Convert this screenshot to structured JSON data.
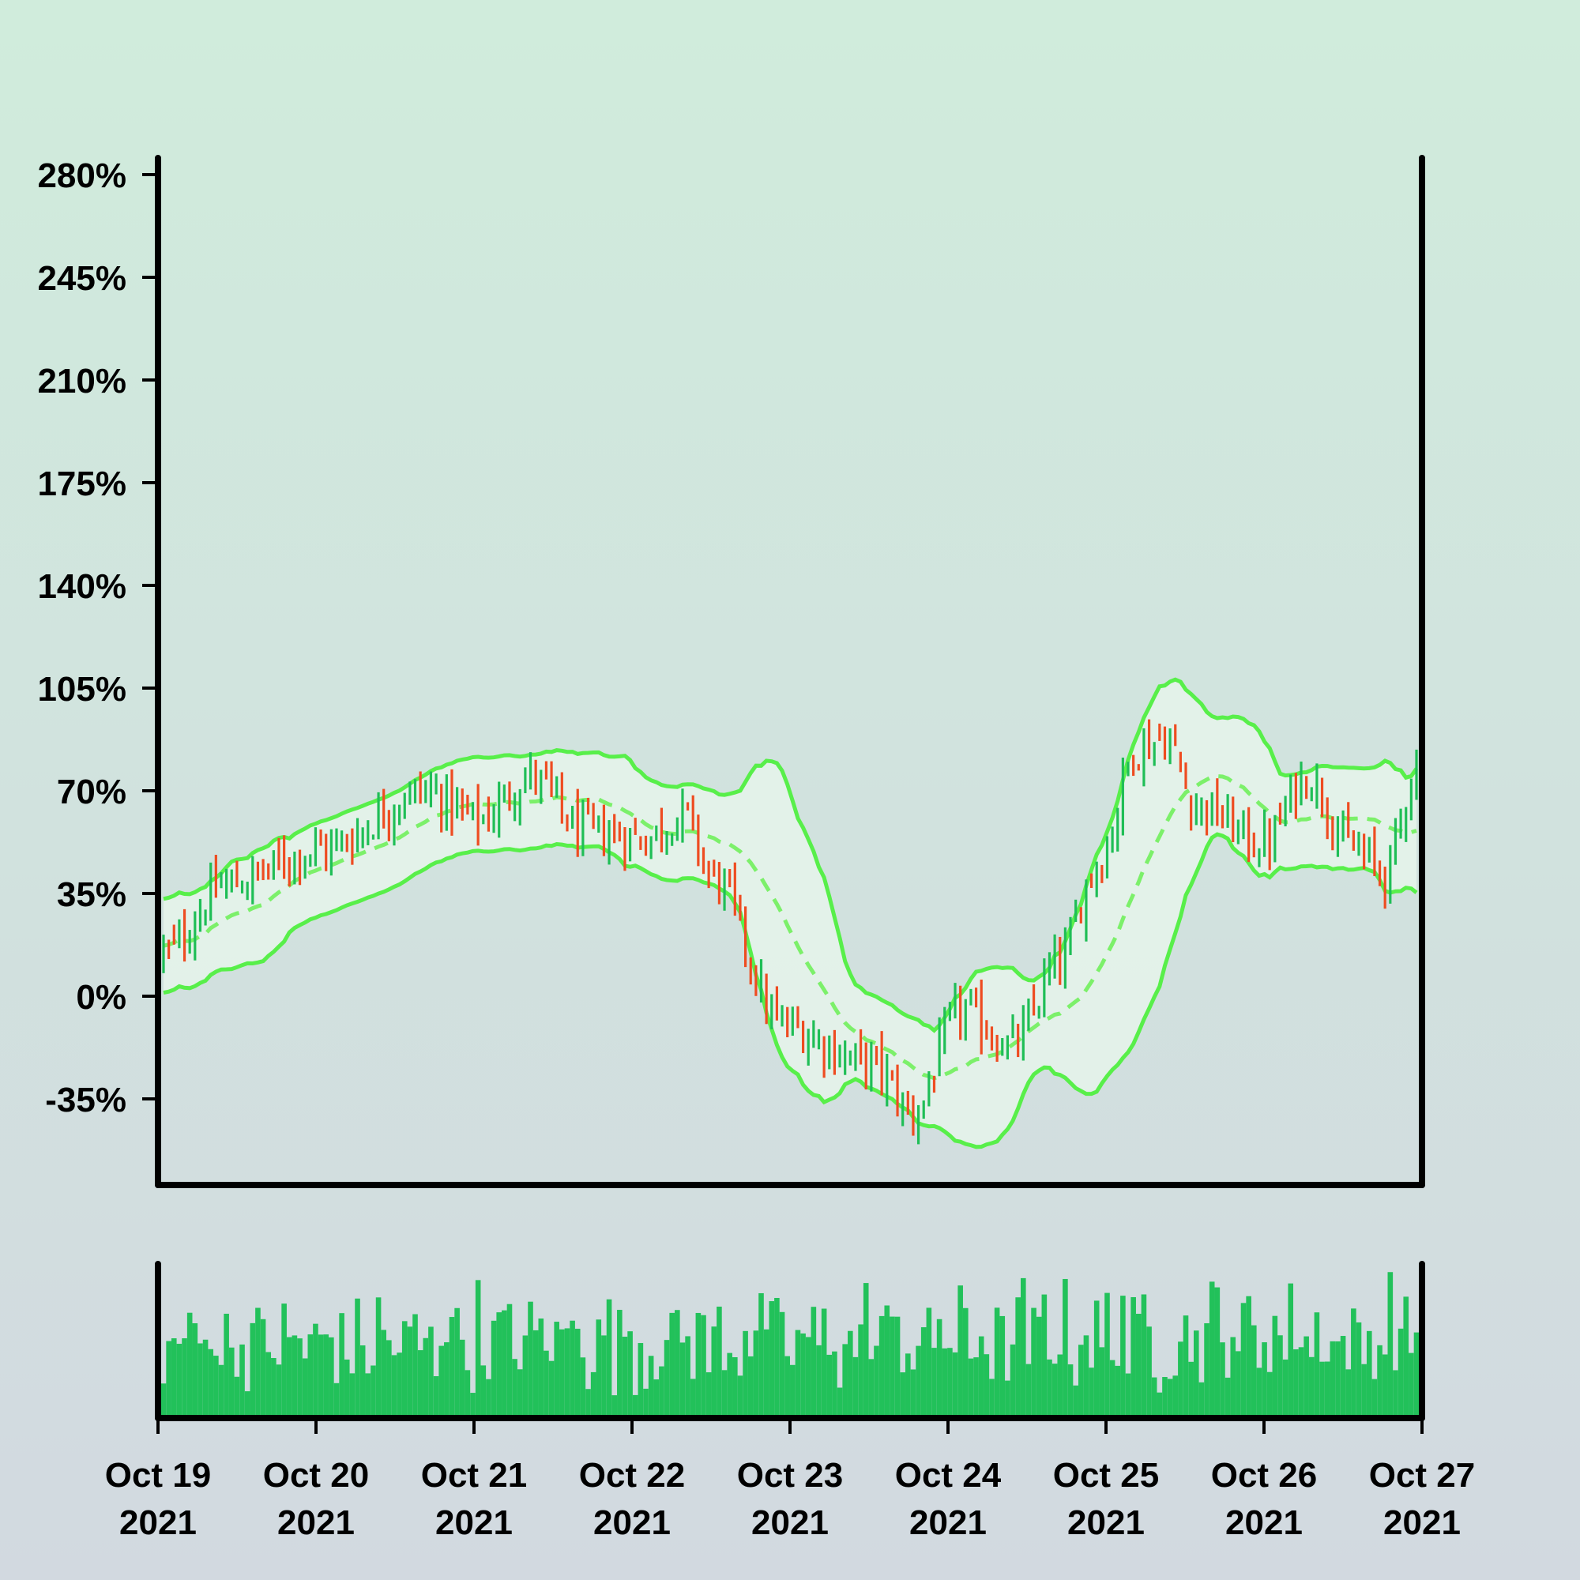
{
  "chart_data": {
    "type": "ohlc",
    "indicator": "bollinger-bands",
    "x_start": "Oct 19 2021",
    "x_end": "Oct 27 2021",
    "x_ticks": [
      {
        "line1": "Oct 19",
        "line2": "2021"
      },
      {
        "line1": "Oct 20",
        "line2": "2021"
      },
      {
        "line1": "Oct 21",
        "line2": "2021"
      },
      {
        "line1": "Oct 22",
        "line2": "2021"
      },
      {
        "line1": "Oct 23",
        "line2": "2021"
      },
      {
        "line1": "Oct 24",
        "line2": "2021"
      },
      {
        "line1": "Oct 25",
        "line2": "2021"
      },
      {
        "line1": "Oct 26",
        "line2": "2021"
      },
      {
        "line1": "Oct 27",
        "line2": "2021"
      }
    ],
    "y_ticks": [
      "280%",
      "245%",
      "210%",
      "175%",
      "140%",
      "105%",
      "70%",
      "35%",
      "0%",
      "-35%"
    ],
    "y_tick_values": [
      280,
      245,
      210,
      175,
      140,
      105,
      70,
      35,
      0,
      -35
    ],
    "ylim": [
      -64,
      286
    ],
    "y_unit": "%",
    "grid": false,
    "legend": "none",
    "colors": {
      "up": "#1fbe56",
      "down": "#ee4c21",
      "band": "#58ef4a",
      "band_fill": "#e8f7ec",
      "volume": "#22c15a",
      "axis": "#000000",
      "background_top": "#d0ecdc",
      "background_bottom": "#d2d9e0"
    },
    "bar_count": 240,
    "close_keypoints": [
      {
        "i": 0,
        "v": 15
      },
      {
        "i": 12,
        "v": 38
      },
      {
        "i": 30,
        "v": 50
      },
      {
        "i": 50,
        "v": 70
      },
      {
        "i": 60,
        "v": 60
      },
      {
        "i": 70,
        "v": 75
      },
      {
        "i": 80,
        "v": 56
      },
      {
        "i": 92,
        "v": 54
      },
      {
        "i": 99,
        "v": 62
      },
      {
        "i": 105,
        "v": 40
      },
      {
        "i": 118,
        "v": -10
      },
      {
        "i": 135,
        "v": -23
      },
      {
        "i": 143,
        "v": -40
      },
      {
        "i": 152,
        "v": -5
      },
      {
        "i": 162,
        "v": -17
      },
      {
        "i": 171,
        "v": 12
      },
      {
        "i": 178,
        "v": 45
      },
      {
        "i": 186,
        "v": 85
      },
      {
        "i": 191,
        "v": 88
      },
      {
        "i": 197,
        "v": 65
      },
      {
        "i": 210,
        "v": 52
      },
      {
        "i": 218,
        "v": 75
      },
      {
        "i": 227,
        "v": 50
      },
      {
        "i": 233,
        "v": 42
      },
      {
        "i": 239,
        "v": 78
      }
    ],
    "volume": {
      "ylim": [
        0,
        100
      ]
    }
  }
}
